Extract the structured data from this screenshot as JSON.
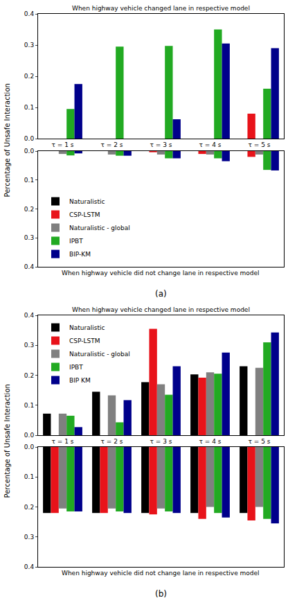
{
  "chart_data": [
    {
      "type": "bar",
      "title": "When highway vehicle changed lane in respective model",
      "ylabel": "Percentage of Unsafe Interaction",
      "categories": [
        "τ = 1 s",
        "τ = 2 s",
        "τ = 3 s",
        "τ = 4 s",
        "τ = 5 s"
      ],
      "series": [
        {
          "name": "Naturalistic",
          "color": "#000000",
          "values": [
            0,
            0,
            0,
            0,
            0
          ]
        },
        {
          "name": "CSP-LSTM",
          "color": "#e8131a",
          "values": [
            0,
            0,
            0,
            0,
            0.08
          ]
        },
        {
          "name": "Naturalistic - global",
          "color": "#808080",
          "values": [
            0,
            0,
            0,
            0,
            0
          ]
        },
        {
          "name": "IPBT",
          "color": "#22aa22",
          "values": [
            0.095,
            0.295,
            0.297,
            0.35,
            0.16
          ]
        },
        {
          "name": "BIP-KM",
          "color": "#00008b",
          "values": [
            0.175,
            0,
            0.062,
            0.305,
            0.29
          ]
        }
      ],
      "ylim": [
        0,
        0.4
      ],
      "yticks": [
        {
          "value": 0,
          "label": "0.0"
        },
        0.1,
        0.2,
        0.3,
        0.4
      ],
      "grid": false
    },
    {
      "type": "bar",
      "xlabel": "When highway vehicle did not change lane in respective model",
      "categories": [
        "τ = 1 s",
        "τ = 2 s",
        "τ = 3 s",
        "τ = 4 s",
        "τ = 5 s"
      ],
      "series": [
        {
          "name": "Naturalistic",
          "color": "#000000",
          "values": [
            0,
            0,
            0,
            0,
            0
          ]
        },
        {
          "name": "CSP-LSTM",
          "color": "#e8131a",
          "values": [
            0,
            0,
            0.004,
            0.01,
            0.02
          ]
        },
        {
          "name": "Naturalistic - global",
          "color": "#808080",
          "values": [
            0.01,
            0.012,
            0.012,
            0.012,
            0.012
          ]
        },
        {
          "name": "IPBT",
          "color": "#22aa22",
          "values": [
            0.015,
            0.016,
            0.025,
            0.025,
            0.065
          ]
        },
        {
          "name": "BIP-KM",
          "color": "#00008b",
          "values": [
            0.008,
            0.016,
            0.025,
            0.035,
            0.067
          ]
        }
      ],
      "ylim": [
        0.4,
        0
      ],
      "yticks": [
        {
          "value": 0,
          "label": "0.0"
        },
        0.1,
        0.2,
        0.3,
        0.4
      ],
      "tick_labels": "y",
      "legend": "lower left",
      "annotations": [
        {
          "text": "(a)"
        }
      ],
      "grid": false
    },
    {
      "type": "bar",
      "title": "When highway vehicle changed lane in respective model",
      "ylabel": "Percentage of Unsafe Interaction",
      "categories": [
        "τ = 1 s",
        "τ = 2 s",
        "τ = 3 s",
        "τ = 4 s",
        "τ = 5 s"
      ],
      "series": [
        {
          "name": "Naturalistic",
          "color": "#000000",
          "values": [
            0.072,
            0.145,
            0.177,
            0.203,
            0.23
          ]
        },
        {
          "name": "CSP-LSTM",
          "color": "#e8131a",
          "values": [
            0,
            0,
            0.355,
            0.192,
            0
          ]
        },
        {
          "name": "Naturalistic - global",
          "color": "#808080",
          "values": [
            0.072,
            0.133,
            0.17,
            0.21,
            0.225
          ]
        },
        {
          "name": "IPBT",
          "color": "#22aa22",
          "values": [
            0.065,
            0.043,
            0.135,
            0.205,
            0.31
          ]
        },
        {
          "name": "BIP KM",
          "color": "#00008b",
          "values": [
            0.027,
            0.117,
            0.23,
            0.276,
            0.343
          ]
        }
      ],
      "ylim": [
        0,
        0.4
      ],
      "yticks": [
        {
          "value": 0,
          "label": "0.0"
        },
        0.1,
        0.2,
        0.3,
        0.4
      ],
      "legend": "upper left",
      "grid": false
    },
    {
      "type": "bar",
      "xlabel": "When highway vehicle did not change lane in respective model",
      "categories": [
        "τ = 1 s",
        "τ = 2 s",
        "τ = 3 s",
        "τ = 4 s",
        "τ = 5 s"
      ],
      "series": [
        {
          "name": "Naturalistic",
          "color": "#000000",
          "values": [
            0.22,
            0.22,
            0.22,
            0.22,
            0.22
          ]
        },
        {
          "name": "CSP-LSTM",
          "color": "#e8131a",
          "values": [
            0.22,
            0.22,
            0.225,
            0.24,
            0.245
          ]
        },
        {
          "name": "Naturalistic - global",
          "color": "#808080",
          "values": [
            0.205,
            0.205,
            0.205,
            0.2,
            0.2
          ]
        },
        {
          "name": "IPBT",
          "color": "#22aa22",
          "values": [
            0.215,
            0.215,
            0.215,
            0.22,
            0.24
          ]
        },
        {
          "name": "BIP KM",
          "color": "#00008b",
          "values": [
            0.215,
            0.22,
            0.22,
            0.235,
            0.255
          ]
        }
      ],
      "ylim": [
        0.4,
        0
      ],
      "yticks": [
        {
          "value": 0,
          "label": "0.0"
        },
        0.1,
        0.2,
        0.3,
        0.4
      ],
      "tick_labels": "y",
      "annotations": [
        {
          "text": "(b)"
        }
      ],
      "grid": false
    }
  ]
}
